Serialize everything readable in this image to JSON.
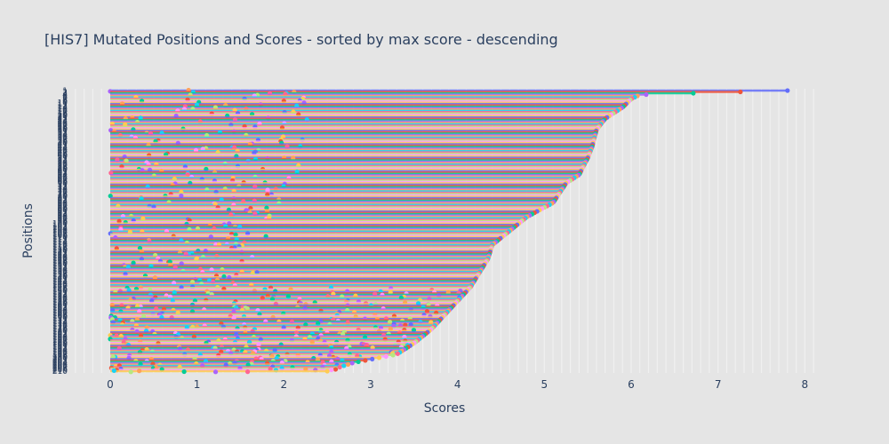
{
  "chart_data": {
    "type": "scatter",
    "title": "[HIS7] Mutated Positions and Scores - sorted by max score - descending",
    "xlabel": "Scores",
    "ylabel": "Positions",
    "xlim": [
      -0.45,
      8.15
    ],
    "xticks": [
      0,
      1,
      2,
      3,
      4,
      5,
      6,
      7,
      8
    ],
    "grid": true,
    "legend": "none",
    "max_score_profile": [
      [
        0,
        7.8
      ],
      [
        0.015,
        6.1
      ],
      [
        0.03,
        6.0
      ],
      [
        0.06,
        5.9
      ],
      [
        0.1,
        5.7
      ],
      [
        0.14,
        5.6
      ],
      [
        0.2,
        5.55
      ],
      [
        0.24,
        5.5
      ],
      [
        0.3,
        5.4
      ],
      [
        0.33,
        5.25
      ],
      [
        0.4,
        5.1
      ],
      [
        0.45,
        4.8
      ],
      [
        0.5,
        4.6
      ],
      [
        0.55,
        4.4
      ],
      [
        0.6,
        4.35
      ],
      [
        0.65,
        4.25
      ],
      [
        0.7,
        4.15
      ],
      [
        0.75,
        4.0
      ],
      [
        0.8,
        3.85
      ],
      [
        0.85,
        3.7
      ],
      [
        0.9,
        3.5
      ],
      [
        0.94,
        3.3
      ],
      [
        0.97,
        2.8
      ],
      [
        1.0,
        2.5
      ]
    ],
    "row_count": 210,
    "y_ticks": [
      "1",
      "2",
      "3",
      "4",
      "5",
      "6",
      "7",
      "8",
      "9",
      "10",
      "11",
      "12",
      "13",
      "14",
      "15",
      "16",
      "17",
      "18",
      "19",
      "20",
      "21",
      "22",
      "23",
      "24",
      "25",
      "26",
      "27",
      "28",
      "29",
      "30",
      "31",
      "32",
      "33",
      "34",
      "35",
      "36",
      "37",
      "38",
      "39",
      "40",
      "41",
      "42",
      "43",
      "44",
      "45",
      "46",
      "47",
      "48",
      "49",
      "50",
      "51",
      "52",
      "53",
      "54",
      "55",
      "56",
      "57",
      "58",
      "59",
      "60",
      "61",
      "62",
      "63",
      "64",
      "65",
      "66",
      "67",
      "68",
      "69",
      "70",
      "71",
      "72",
      "73",
      "74",
      "75",
      "76",
      "77",
      "78",
      "79",
      "80",
      "81",
      "82",
      "83",
      "84",
      "85",
      "86",
      "87",
      "88",
      "89",
      "90",
      "91",
      "92",
      "93",
      "94",
      "95",
      "96",
      "97",
      "98",
      "99",
      "100",
      "101",
      "102",
      "103",
      "104",
      "105",
      "106",
      "107",
      "108",
      "109",
      "110",
      "111",
      "112",
      "113",
      "114",
      "115",
      "116",
      "117",
      "118",
      "119",
      "120",
      "121",
      "122",
      "123",
      "124",
      "125",
      "126",
      "127",
      "128",
      "129",
      "130",
      "131",
      "132",
      "133",
      "134",
      "135",
      "136",
      "137",
      "138",
      "139",
      "140",
      "141",
      "142",
      "143",
      "144",
      "145",
      "146",
      "147",
      "148",
      "149",
      "150",
      "151",
      "152",
      "153",
      "154",
      "155",
      "156",
      "157",
      "158",
      "159",
      "160",
      "161",
      "162",
      "163",
      "164",
      "165",
      "166",
      "167",
      "168",
      "169",
      "170",
      "171",
      "172",
      "173",
      "174",
      "175",
      "176",
      "177",
      "178",
      "179",
      "180",
      "181",
      "182",
      "183",
      "184",
      "185",
      "186",
      "187",
      "188",
      "189",
      "190",
      "191",
      "192",
      "193",
      "194",
      "195",
      "196",
      "197",
      "198",
      "199",
      "200",
      "201",
      "202",
      "203",
      "204",
      "205",
      "206",
      "207",
      "208",
      "209",
      "210"
    ],
    "palette": [
      "#636efa",
      "#EF553B",
      "#00cc96",
      "#ab63fa",
      "#FFA15A",
      "#19d3f3",
      "#FF6692",
      "#B6E880",
      "#FF97FF",
      "#FECB52"
    ]
  }
}
